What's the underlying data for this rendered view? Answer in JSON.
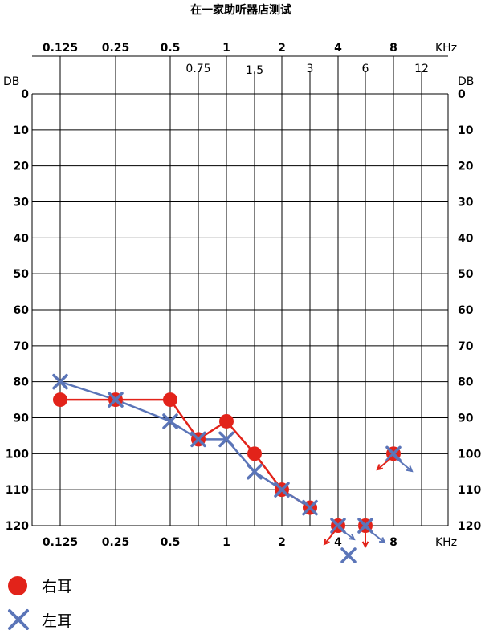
{
  "chart_data": {
    "type": "line",
    "title": "在一家助听器店测试",
    "x_unit": "KHz",
    "y_unit": "DB",
    "x_top_ticks": [
      "0.125",
      "0.25",
      "0.5",
      "1",
      "2",
      "4",
      "8"
    ],
    "x_mid_ticks": [
      "0.75",
      "1.5",
      "3",
      "6",
      "12"
    ],
    "x_bottom_ticks": [
      "0.125",
      "0.25",
      "0.5",
      "1",
      "2",
      "4",
      "8"
    ],
    "y_ticks": [
      0,
      10,
      20,
      30,
      40,
      50,
      60,
      70,
      80,
      90,
      100,
      110,
      120
    ],
    "ylim": [
      0,
      120
    ],
    "y_inverted": true,
    "grid": true,
    "legend_position": "bottom-left",
    "series": [
      {
        "name": "右耳",
        "marker": "circle",
        "color": "#e2231a",
        "points": [
          {
            "x": "0.125",
            "y": 85
          },
          {
            "x": "0.25",
            "y": 85
          },
          {
            "x": "0.5",
            "y": 85
          },
          {
            "x": "0.75",
            "y": 96
          },
          {
            "x": "1",
            "y": 91
          },
          {
            "x": "1.5",
            "y": 100
          },
          {
            "x": "2",
            "y": 110
          },
          {
            "x": "3",
            "y": 115
          },
          {
            "x": "4",
            "y": 120
          },
          {
            "x": "6",
            "y": 120
          },
          {
            "x": "8",
            "y": 100
          }
        ]
      },
      {
        "name": "左耳",
        "marker": "x",
        "color": "#5b75b8",
        "points": [
          {
            "x": "0.125",
            "y": 80
          },
          {
            "x": "0.25",
            "y": 85
          },
          {
            "x": "0.5",
            "y": 91
          },
          {
            "x": "0.75",
            "y": 96
          },
          {
            "x": "1",
            "y": 96
          },
          {
            "x": "1.5",
            "y": 105
          },
          {
            "x": "2",
            "y": 110
          },
          {
            "x": "3",
            "y": 115
          },
          {
            "x": "4",
            "y": 120
          },
          {
            "x": "6",
            "y": 120
          },
          {
            "x": "8",
            "y": 100
          }
        ]
      }
    ]
  }
}
